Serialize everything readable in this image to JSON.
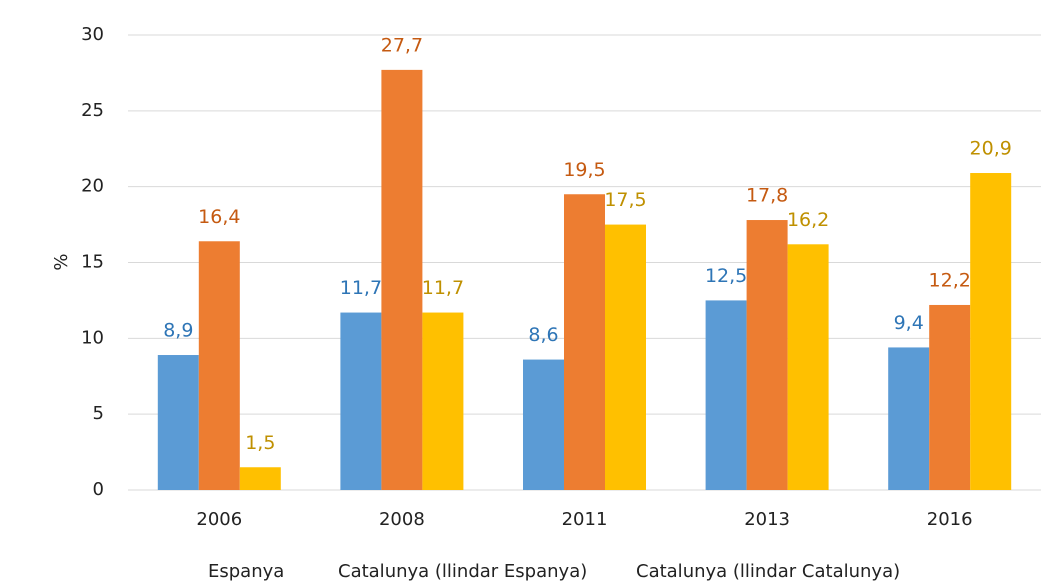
{
  "chart_data": {
    "type": "bar",
    "y_label": "%",
    "categories": [
      "2006",
      "2008",
      "2011",
      "2013",
      "2016"
    ],
    "series": [
      {
        "name": "Espanya",
        "color": "#5b9bd5",
        "label_color": "#2e75b6",
        "values": [
          8.9,
          11.7,
          8.6,
          12.5,
          9.4
        ],
        "value_labels": [
          "8,9",
          "11,7",
          "8,6",
          "12,5",
          "9,4"
        ]
      },
      {
        "name": "Catalunya (llindar Espanya)",
        "color": "#ed7d31",
        "label_color": "#c55a11",
        "values": [
          16.4,
          27.7,
          19.5,
          17.8,
          12.2
        ],
        "value_labels": [
          "16,4",
          "27,7",
          "19,5",
          "17,8",
          "12,2"
        ]
      },
      {
        "name": "Catalunya (llindar Catalunya)",
        "color": "#ffc000",
        "label_color": "#bf9000",
        "values": [
          1.5,
          11.7,
          17.5,
          16.2,
          20.9
        ],
        "value_labels": [
          "1,5",
          "11,7",
          "17,5",
          "16,2",
          "20,9"
        ]
      }
    ],
    "ylim": [
      0,
      30
    ],
    "yticks": [
      0,
      5,
      10,
      15,
      20,
      25,
      30
    ],
    "grid": true
  }
}
